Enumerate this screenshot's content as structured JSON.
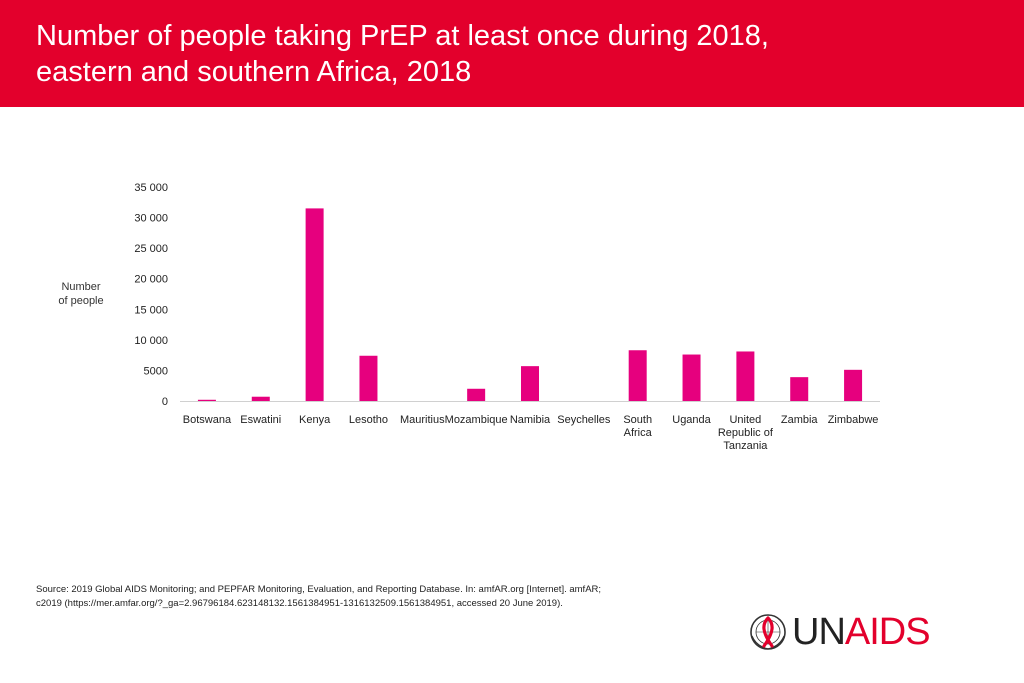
{
  "header": {
    "title_line1": "Number of people taking PrEP at least once during 2018,",
    "title_line2": "eastern and southern Africa, 2018"
  },
  "colors": {
    "header_bg": "#e3002c",
    "bar": "#e6007e",
    "brand_red": "#e3002c"
  },
  "chart_data": {
    "type": "bar",
    "title": "Number of people taking PrEP at least once during 2018, eastern and southern Africa, 2018",
    "ylabel_line1": "Number",
    "ylabel_line2": "of people",
    "xlabel": "",
    "ylim": [
      0,
      35000
    ],
    "yticks": [
      0,
      5000,
      10000,
      15000,
      20000,
      25000,
      30000,
      35000
    ],
    "ytick_labels": [
      "0",
      "5000",
      "10 000",
      "15 000",
      "20 000",
      "25 000",
      "30 000",
      "35 000"
    ],
    "categories": [
      [
        "Botswana"
      ],
      [
        "Eswatini"
      ],
      [
        "Kenya"
      ],
      [
        "Lesotho"
      ],
      [
        "Mauritius"
      ],
      [
        "Mozambique"
      ],
      [
        "Namibia"
      ],
      [
        "Seychelles"
      ],
      [
        "South",
        "Africa"
      ],
      [
        "Uganda"
      ],
      [
        "United",
        "Republic of",
        "Tanzania"
      ],
      [
        "Zambia"
      ],
      [
        "Zimbabwe"
      ]
    ],
    "values": [
      200,
      700,
      31500,
      7400,
      0,
      2000,
      5700,
      0,
      8300,
      7600,
      8100,
      3900,
      5100
    ],
    "grid": false,
    "legend": "none"
  },
  "source": {
    "label": "Source:",
    "line1": " 2019 Global AIDS Monitoring; and PEPFAR Monitoring, Evaluation, and Reporting Database. In: amfAR.org [Internet]. amfAR;",
    "line2": "c2019 (https://mer.amfar.org/?_ga=2.96796184.623148132.1561384951-1316132509.1561384951, accessed 20 June 2019)."
  },
  "logo": {
    "text_un": "UN",
    "text_aids": "AIDS",
    "icon": "un-emblem-ribbon-icon"
  }
}
